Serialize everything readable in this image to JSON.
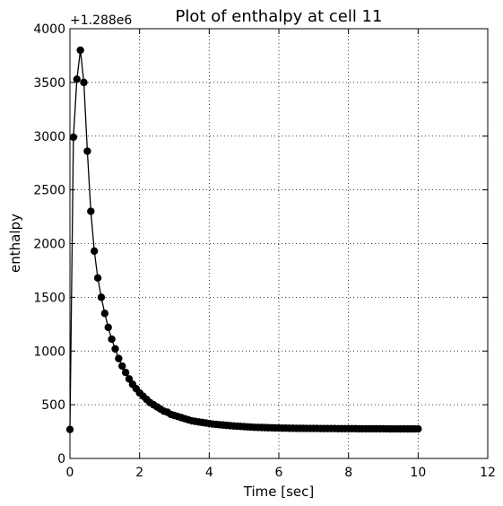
{
  "chart_data": {
    "type": "line",
    "title": "Plot of enthalpy at cell 11",
    "xlabel": "Time [sec]",
    "ylabel": "enthalpy",
    "y_offset_label": "+1.288e6",
    "xlim": [
      0,
      12
    ],
    "ylim": [
      0,
      4000
    ],
    "x_ticks": [
      0,
      2,
      4,
      6,
      8,
      10,
      12
    ],
    "y_ticks": [
      0,
      500,
      1000,
      1500,
      2000,
      2500,
      3000,
      3500,
      4000
    ],
    "grid": true,
    "series": [
      {
        "color": "#000000",
        "marker": "circle",
        "x": [
          0.0,
          0.1,
          0.2,
          0.3,
          0.4,
          0.5,
          0.6,
          0.7,
          0.8,
          0.9,
          1.0,
          1.1,
          1.2,
          1.3,
          1.4,
          1.5,
          1.6,
          1.7,
          1.8,
          1.9,
          2.0,
          2.1,
          2.2,
          2.3,
          2.4,
          2.5,
          2.6,
          2.7,
          2.8,
          2.9,
          3.0,
          3.1,
          3.2,
          3.3,
          3.4,
          3.5,
          3.6,
          3.7,
          3.8,
          3.9,
          4.0,
          4.1,
          4.2,
          4.3,
          4.4,
          4.5,
          4.6,
          4.7,
          4.8,
          4.9,
          5.0,
          5.1,
          5.2,
          5.3,
          5.4,
          5.5,
          5.6,
          5.7,
          5.8,
          5.9,
          6.0,
          6.1,
          6.2,
          6.3,
          6.4,
          6.5,
          6.6,
          6.7,
          6.8,
          6.9,
          7.0,
          7.1,
          7.2,
          7.3,
          7.4,
          7.5,
          7.6,
          7.7,
          7.8,
          7.9,
          8.0,
          8.1,
          8.2,
          8.3,
          8.4,
          8.5,
          8.6,
          8.7,
          8.8,
          8.9,
          9.0,
          9.1,
          9.2,
          9.3,
          9.4,
          9.5,
          9.6,
          9.7,
          9.8,
          9.9,
          10.0
        ],
        "y": [
          270,
          2990,
          3530,
          3800,
          3500,
          2860,
          2300,
          1930,
          1680,
          1500,
          1350,
          1220,
          1110,
          1020,
          930,
          860,
          800,
          740,
          690,
          650,
          610,
          580,
          550,
          520,
          500,
          480,
          460,
          440,
          430,
          410,
          400,
          390,
          380,
          370,
          360,
          350,
          345,
          340,
          335,
          330,
          325,
          320,
          317,
          314,
          311,
          308,
          305,
          302,
          300,
          298,
          296,
          294,
          292,
          290,
          289,
          288,
          287,
          286,
          285,
          284,
          283,
          282,
          282,
          281,
          281,
          280,
          280,
          280,
          279,
          279,
          279,
          279,
          278,
          278,
          278,
          278,
          278,
          277,
          277,
          277,
          277,
          277,
          277,
          276,
          276,
          276,
          276,
          276,
          276,
          276,
          276,
          275,
          275,
          275,
          275,
          275,
          275,
          275,
          275,
          275,
          275
        ]
      }
    ]
  }
}
